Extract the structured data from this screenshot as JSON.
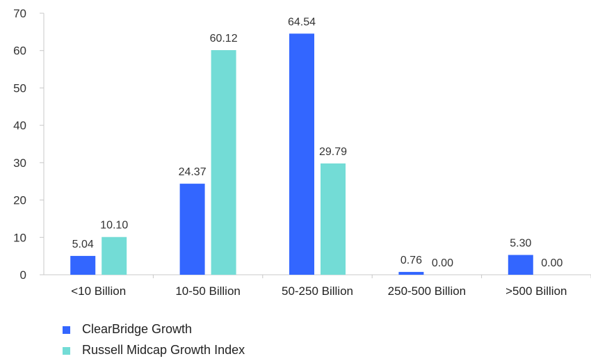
{
  "chart_data": {
    "type": "bar",
    "categories": [
      "<10 Billion",
      "10-50 Billion",
      "50-250 Billion",
      "250-500 Billion",
      ">500 Billion"
    ],
    "series": [
      {
        "name": "ClearBridge Growth",
        "color": "#3366ff",
        "values": [
          5.04,
          24.37,
          64.54,
          0.76,
          5.3
        ],
        "labels": [
          "5.04",
          "24.37",
          "64.54",
          "0.76",
          "5.30"
        ]
      },
      {
        "name": "Russell Midcap Growth Index",
        "color": "#73dcd6",
        "values": [
          10.1,
          60.12,
          29.79,
          0.0,
          0.0
        ],
        "labels": [
          "10.10",
          "60.12",
          "29.79",
          "0.00",
          "0.00"
        ]
      }
    ],
    "ylim": [
      0,
      70
    ],
    "yticks": [
      "0",
      "10",
      "20",
      "30",
      "40",
      "50",
      "60",
      "70"
    ],
    "grid": false,
    "legend": "bottom-left"
  }
}
